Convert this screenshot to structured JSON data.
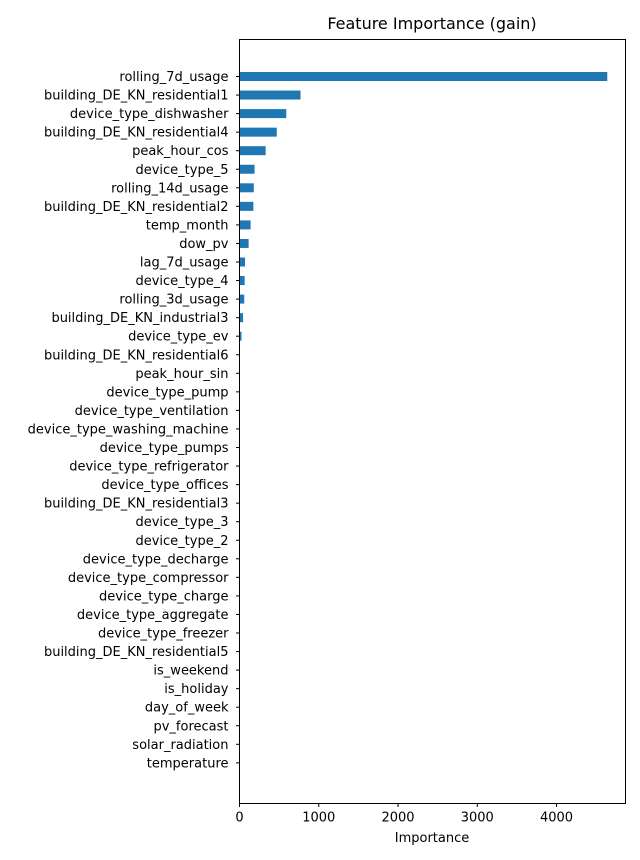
{
  "chart_data": {
    "type": "bar",
    "orientation": "horizontal",
    "title": "Feature Importance (gain)",
    "xlabel": "Importance",
    "ylabel": "",
    "xlim": [
      0,
      4870
    ],
    "xticks": [
      0,
      1000,
      2000,
      3000,
      4000
    ],
    "grid": false,
    "bar_color": "#1f77b4",
    "categories": [
      "rolling_7d_usage",
      "building_DE_KN_residential1",
      "device_type_dishwasher",
      "building_DE_KN_residential4",
      "peak_hour_cos",
      "device_type_5",
      "rolling_14d_usage",
      "building_DE_KN_residential2",
      "temp_month",
      "dow_pv",
      "lag_7d_usage",
      "device_type_4",
      "rolling_3d_usage",
      "building_DE_KN_industrial3",
      "device_type_ev",
      "building_DE_KN_residential6",
      "peak_hour_sin",
      "device_type_pump",
      "device_type_ventilation",
      "device_type_washing_machine",
      "device_type_pumps",
      "device_type_refrigerator",
      "device_type_offices",
      "building_DE_KN_residential3",
      "device_type_3",
      "device_type_2",
      "device_type_decharge",
      "device_type_compressor",
      "device_type_charge",
      "device_type_aggregate",
      "device_type_freezer",
      "building_DE_KN_residential5",
      "is_weekend",
      "is_holiday",
      "day_of_week",
      "pv_forecast",
      "solar_radiation",
      "temperature"
    ],
    "values": [
      4640,
      770,
      590,
      470,
      330,
      190,
      180,
      175,
      140,
      115,
      70,
      65,
      60,
      45,
      25,
      5,
      4,
      3,
      2,
      2,
      2,
      1,
      1,
      1,
      1,
      1,
      0,
      0,
      0,
      0,
      0,
      0,
      0,
      0,
      0,
      0,
      0,
      0
    ]
  }
}
